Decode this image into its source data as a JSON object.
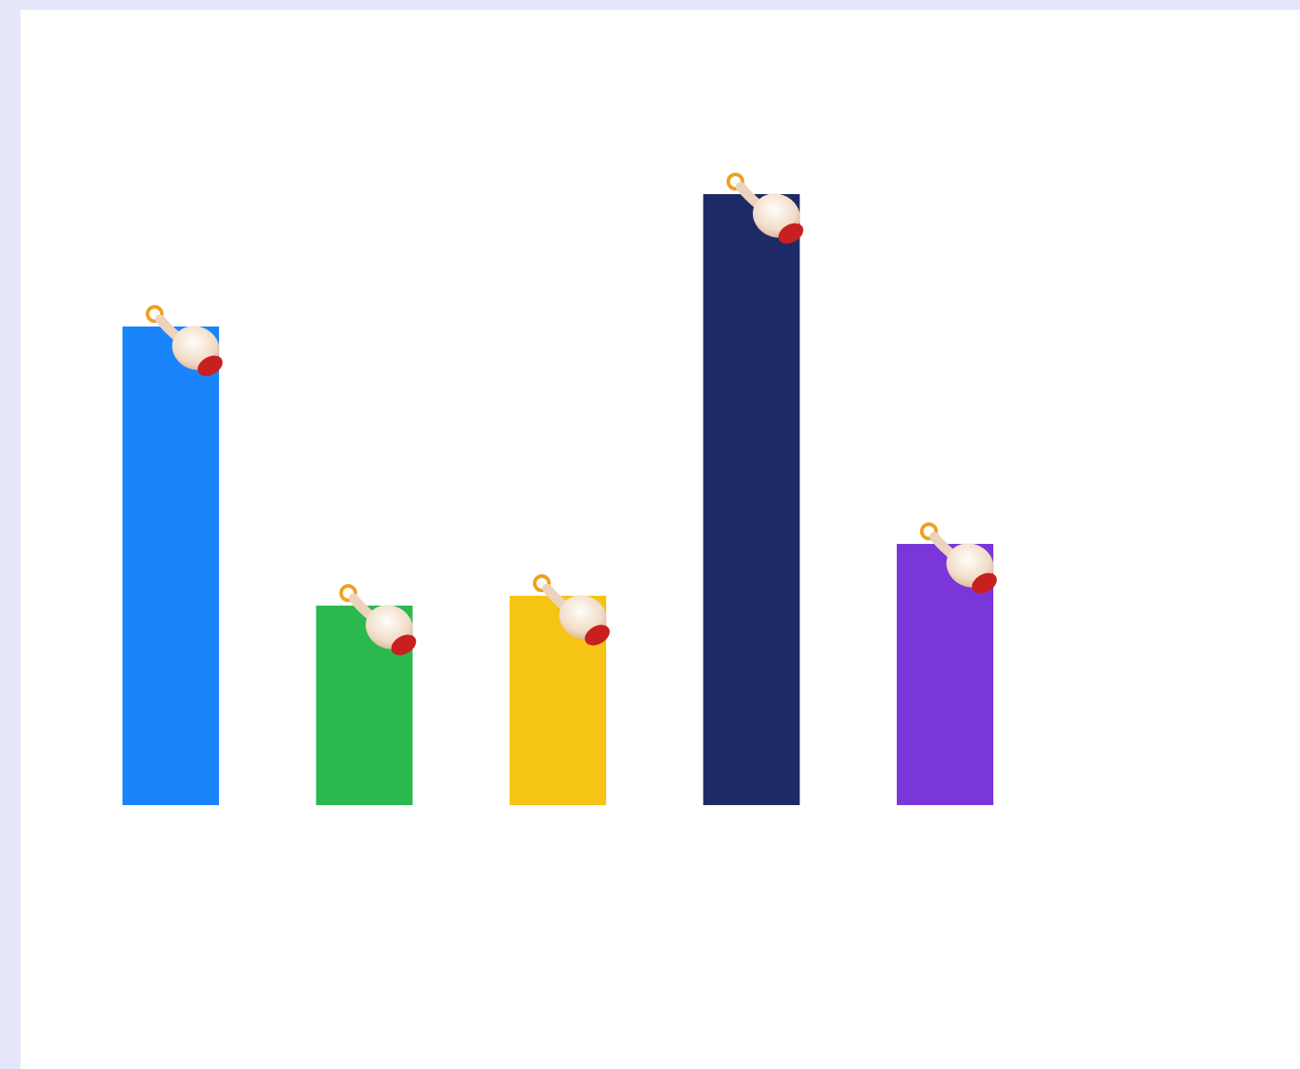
{
  "page": {
    "background_color": "#e6e6fb",
    "panel_color": "#ffffff"
  },
  "chart_data": {
    "type": "bar",
    "values": [
      535,
      223,
      234,
      683,
      292
    ],
    "colors": [
      "#1a84fb",
      "#2bb84f",
      "#f5c414",
      "#1d2a66",
      "#7a36d9"
    ],
    "ylim": [
      0,
      900
    ],
    "grid": false,
    "legend": "none",
    "marker_icon": "pointing-hand-icon"
  }
}
